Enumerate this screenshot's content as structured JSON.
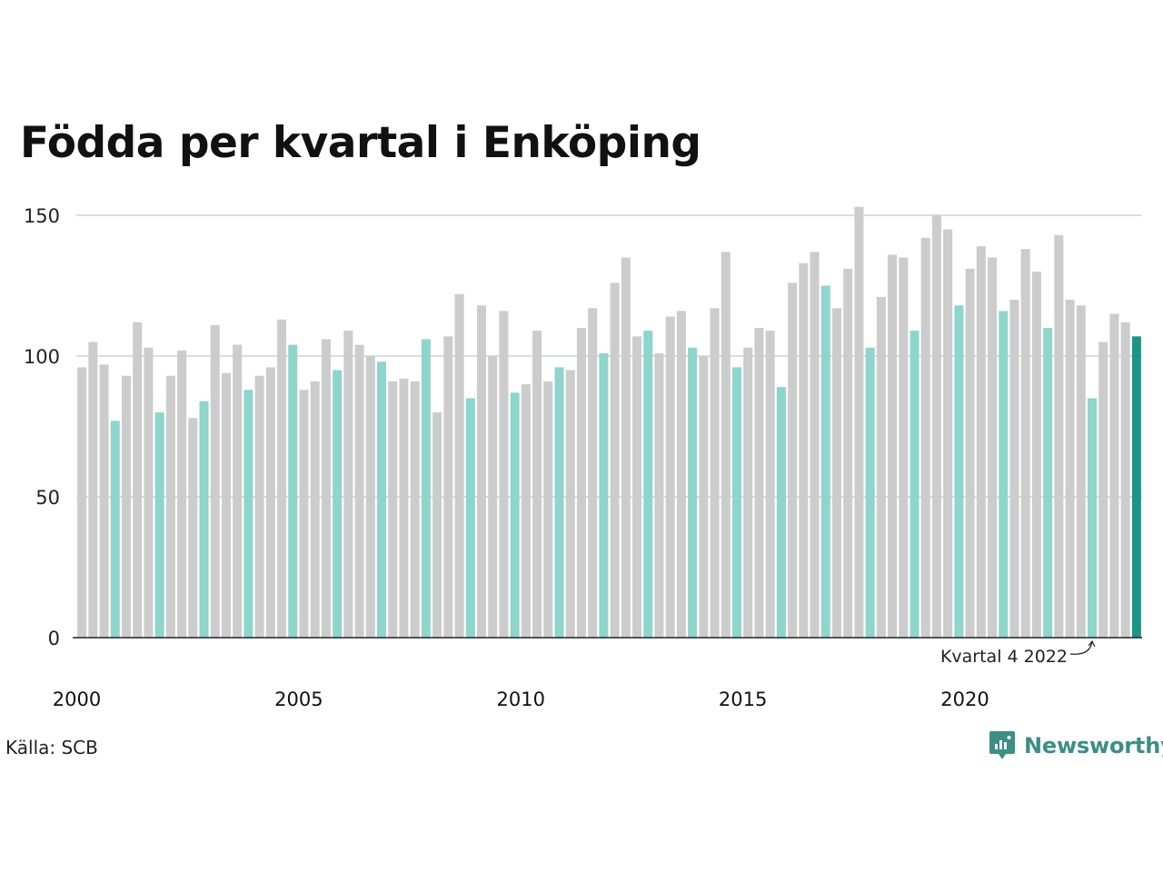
{
  "title": "Födda per kvartal i Enköping",
  "source": "Källa: SCB",
  "brand": "Newsworthy",
  "colors": {
    "regular": "#cccccc",
    "q4": "#8dd5cd",
    "latest": "#1a9688",
    "grid": "#dddddd",
    "axis": "#222222"
  },
  "chart_data": {
    "type": "bar",
    "title": "Födda per kvartal i Enköping",
    "xlabel": "",
    "ylabel": "",
    "ylim": [
      0,
      150
    ],
    "yticks": [
      0,
      50,
      100,
      150
    ],
    "xticks": [
      "2000",
      "2005",
      "2010",
      "2015",
      "2020"
    ],
    "grid": true,
    "annotation": "Kvartal 4 2022",
    "categories": [
      "2000 K1",
      "2000 K2",
      "2000 K3",
      "2000 K4",
      "2001 K1",
      "2001 K2",
      "2001 K3",
      "2001 K4",
      "2002 K1",
      "2002 K2",
      "2002 K3",
      "2002 K4",
      "2003 K1",
      "2003 K2",
      "2003 K3",
      "2003 K4",
      "2004 K1",
      "2004 K2",
      "2004 K3",
      "2004 K4",
      "2005 K1",
      "2005 K2",
      "2005 K3",
      "2005 K4",
      "2006 K1",
      "2006 K2",
      "2006 K3",
      "2006 K4",
      "2007 K1",
      "2007 K2",
      "2007 K3",
      "2007 K4",
      "2008 K1",
      "2008 K2",
      "2008 K3",
      "2008 K4",
      "2009 K1",
      "2009 K2",
      "2009 K3",
      "2009 K4",
      "2010 K1",
      "2010 K2",
      "2010 K3",
      "2010 K4",
      "2011 K1",
      "2011 K2",
      "2011 K3",
      "2011 K4",
      "2012 K1",
      "2012 K2",
      "2012 K3",
      "2012 K4",
      "2013 K1",
      "2013 K2",
      "2013 K3",
      "2013 K4",
      "2014 K1",
      "2014 K2",
      "2014 K3",
      "2014 K4",
      "2015 K1",
      "2015 K2",
      "2015 K3",
      "2015 K4",
      "2016 K1",
      "2016 K2",
      "2016 K3",
      "2016 K4",
      "2017 K1",
      "2017 K2",
      "2017 K3",
      "2017 K4",
      "2018 K1",
      "2018 K2",
      "2018 K3",
      "2018 K4",
      "2019 K1",
      "2019 K2",
      "2019 K3",
      "2019 K4",
      "2020 K1",
      "2020 K2",
      "2020 K3",
      "2020 K4",
      "2021 K1",
      "2021 K2",
      "2021 K3",
      "2021 K4",
      "2022 K1",
      "2022 K2",
      "2022 K3",
      "2022 K4",
      "2023 K1",
      "2023 K2",
      "2023 K3",
      "2023 K4"
    ],
    "values": [
      96,
      105,
      97,
      77,
      93,
      112,
      103,
      80,
      93,
      102,
      78,
      84,
      111,
      94,
      104,
      88,
      93,
      96,
      113,
      104,
      88,
      91,
      106,
      95,
      109,
      104,
      100,
      98,
      91,
      92,
      91,
      106,
      80,
      107,
      122,
      85,
      118,
      100,
      116,
      87,
      90,
      109,
      91,
      96,
      95,
      110,
      117,
      101,
      126,
      135,
      107,
      109,
      101,
      114,
      116,
      103,
      100,
      117,
      137,
      96,
      103,
      110,
      109,
      89,
      126,
      133,
      137,
      125,
      117,
      131,
      153,
      103,
      121,
      136,
      135,
      109,
      142,
      150,
      145,
      118,
      131,
      139,
      135,
      116,
      120,
      138,
      130,
      110,
      143,
      120,
      118,
      85,
      105,
      115,
      112,
      107
    ]
  }
}
